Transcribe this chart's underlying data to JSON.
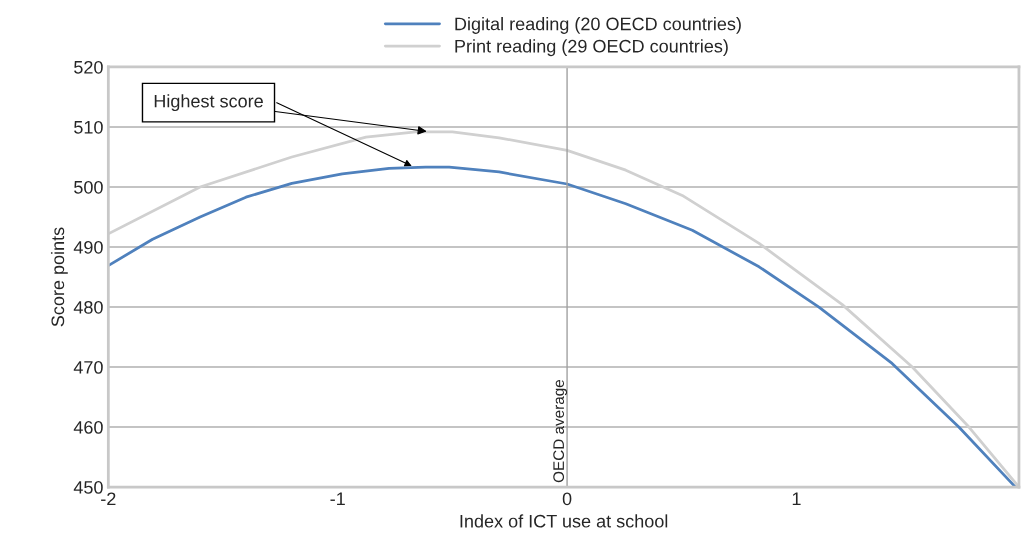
{
  "chart_data": {
    "type": "line",
    "xlabel": "Index of ICT use at school",
    "ylabel": "Score points",
    "xlim": [
      -2,
      1.97
    ],
    "xticks": [
      -2,
      -1,
      0,
      1
    ],
    "ylim": [
      450,
      520
    ],
    "yticks": [
      450,
      460,
      470,
      480,
      490,
      500,
      510,
      520
    ],
    "grid": "y",
    "legend": "top",
    "line_style": "solid",
    "marker": "none",
    "series": [
      {
        "name": "Digital reading (20 OECD countries)",
        "color": "#4f81bd",
        "x": [
          -2,
          -1.807,
          -1.6,
          -1.4,
          -1.2,
          -0.98,
          -0.776,
          -0.616,
          -0.514,
          -0.296,
          0,
          0.256,
          0.546,
          0.837,
          1.098,
          1.417,
          1.708,
          1.955
        ],
        "values": [
          486.9,
          491.3,
          495,
          498.3,
          500.6,
          502.2,
          503.1,
          503.3,
          503.3,
          502.5,
          500.5,
          497.2,
          492.8,
          486.7,
          480,
          470.6,
          460,
          450
        ]
      },
      {
        "name": "Print reading (29 OECD countries)",
        "color": "#d0d0d0",
        "x": [
          -2,
          -1.6,
          -1.2,
          -0.877,
          -0.66,
          -0.5,
          -0.296,
          0,
          0.256,
          0.502,
          0.837,
          1.2,
          1.505,
          1.752,
          1.97
        ],
        "values": [
          492.2,
          500,
          505,
          508.3,
          509.2,
          509.2,
          508.2,
          506.1,
          502.8,
          498.6,
          490.6,
          480.4,
          470,
          460,
          450
        ]
      }
    ],
    "ref_lines": [
      {
        "axis": "x",
        "value": 0,
        "label": "OECD average",
        "color": "#a0a0a0"
      }
    ],
    "annotations": [
      {
        "text": "Highest score",
        "x": -0.6,
        "y": 509.2
      }
    ]
  }
}
